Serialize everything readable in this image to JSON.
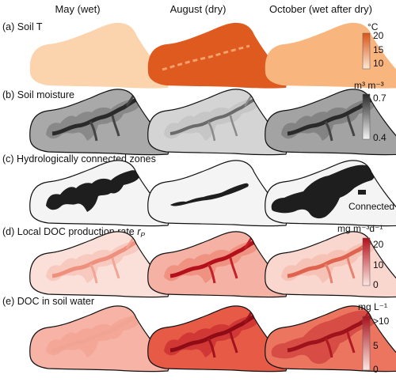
{
  "columns": [
    "May (wet)",
    "August (dry)",
    "October (wet after dry)"
  ],
  "rows": [
    {
      "label": "(a) Soil T",
      "unit": "°C",
      "ticks": [
        "20",
        "15",
        "10"
      ],
      "colors": {
        "top": "#d9541a",
        "bottom": "#fde8d3"
      },
      "fills": [
        "#fbd3ad",
        "#de5a1f",
        "#f8b57e"
      ]
    },
    {
      "label": "(b) Soil moisture",
      "unit": "m³ m⁻³",
      "ticks": [
        "0.7",
        "0.4"
      ],
      "colors": {
        "top": "#262626",
        "bottom": "#f5f5f5"
      },
      "fills": [
        "#a9a9a9",
        "#d4d4d4",
        "#a3a3a3"
      ]
    },
    {
      "label": "(c) Hydrologically connected zones",
      "legend_label": "Connected",
      "colors": {
        "background": "#f4f4f4",
        "connected": "#1e1e1e"
      }
    },
    {
      "label_prefix": "(d) Local DOC production rate ",
      "label_symbol": "r",
      "label_subscript": "P",
      "unit": "mg m⁻³d⁻¹",
      "ticks": [
        "20",
        "10",
        "0"
      ],
      "colors": {
        "top": "#b30f1a",
        "bottom": "#fde7e2"
      },
      "fills": [
        "#fbe0da",
        "#f5b1a3",
        "#fad7ce"
      ]
    },
    {
      "label": "(e) DOC in soil water",
      "unit": "mg L⁻¹",
      "ticks": [
        ">10",
        "5",
        "0"
      ],
      "colors": {
        "top": "#a9111c",
        "bottom": "#fde7e2"
      },
      "fills": [
        "#f6b3a6",
        "#e75a45",
        "#ec7560"
      ]
    }
  ]
}
